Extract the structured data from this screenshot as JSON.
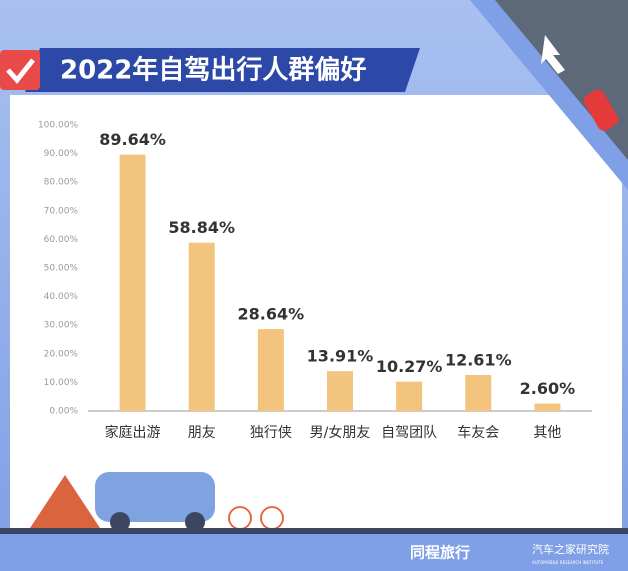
{
  "chart_data": {
    "type": "bar",
    "title": "2022年自驾出行人群偏好",
    "categories": [
      "家庭出游",
      "朋友",
      "独行侠",
      "男/女朋友",
      "自驾团队",
      "车友会",
      "其他"
    ],
    "values": [
      89.64,
      58.84,
      28.64,
      13.91,
      10.27,
      12.61,
      2.6
    ],
    "value_labels": [
      "89.64%",
      "58.84%",
      "28.64%",
      "13.91%",
      "10.27%",
      "12.61%",
      "2.60%"
    ],
    "color": "#f3c47e",
    "ylim": [
      0,
      100
    ],
    "yticks": [
      {
        "value": 0,
        "label": "0.00%"
      },
      {
        "value": 10,
        "label": "10.00%"
      },
      {
        "value": 20,
        "label": "20.00%"
      },
      {
        "value": 30,
        "label": "30.00%"
      },
      {
        "value": 40,
        "label": "40.00%"
      },
      {
        "value": 50,
        "label": "50.00%"
      },
      {
        "value": 60,
        "label": "60.00%"
      },
      {
        "value": 70,
        "label": "70.00%"
      },
      {
        "value": 80,
        "label": "80.00%"
      },
      {
        "value": 90,
        "label": "90.00%"
      },
      {
        "value": 100,
        "label": "100.00%"
      }
    ],
    "grid": false,
    "footer": {
      "brand1": "同程旅行",
      "brand2": "汽车之家研究院",
      "brand2_sub": "AUTOMOBILE RESEARCH INSTITUTE"
    }
  }
}
